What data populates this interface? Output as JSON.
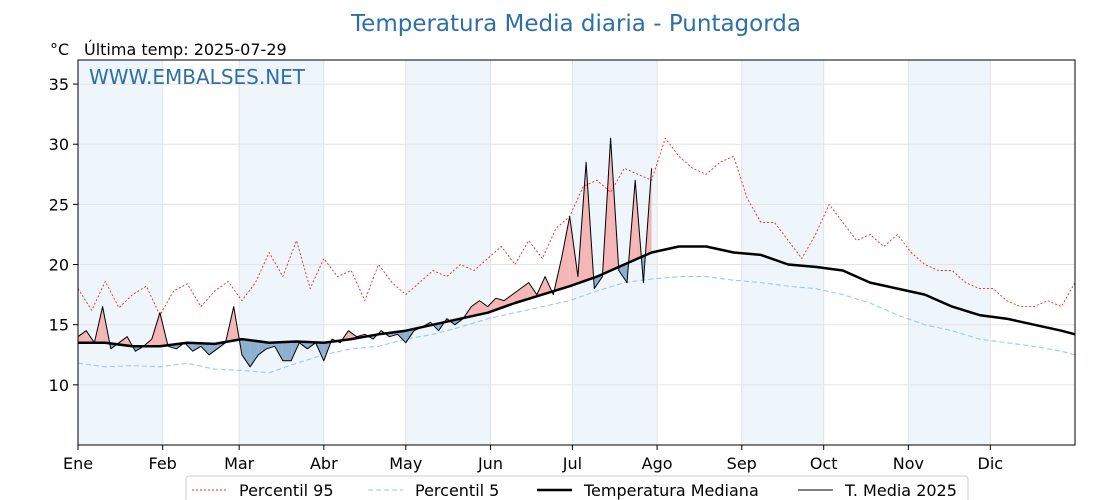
{
  "header": {
    "title": "Temperatura Media diaria - Puntagorda",
    "unit": "°C",
    "last_temp": "Última temp: 2025-07-29",
    "watermark": "WWW.EMBALSES.NET"
  },
  "colors": {
    "p95": "#e8271f",
    "p5": "#9ecae1",
    "median": "#000000",
    "current": "#000000",
    "above_fill": "#f4b6b6",
    "below_fill": "#8eb0cf",
    "month_band": "#eef5fb",
    "title": "#2e6fa8"
  },
  "chart_data": {
    "type": "line",
    "title": "Temperatura Media diaria - Puntagorda",
    "ylabel": "°C",
    "ylim": [
      5,
      37
    ],
    "xlim_days": [
      0,
      365
    ],
    "grid": true,
    "legend_position": "bottom",
    "x_ticks": [
      {
        "label": "Ene",
        "day": 0
      },
      {
        "label": "Feb",
        "day": 31
      },
      {
        "label": "Mar",
        "day": 59
      },
      {
        "label": "Abr",
        "day": 90
      },
      {
        "label": "May",
        "day": 120
      },
      {
        "label": "Jun",
        "day": 151
      },
      {
        "label": "Jul",
        "day": 181
      },
      {
        "label": "Ago",
        "day": 212
      },
      {
        "label": "Sep",
        "day": 243
      },
      {
        "label": "Oct",
        "day": 273
      },
      {
        "label": "Nov",
        "day": 304
      },
      {
        "label": "Dic",
        "day": 334
      }
    ],
    "y_ticks": [
      10,
      15,
      20,
      25,
      30,
      35
    ],
    "series": [
      {
        "name": "Percentil 95",
        "style": "dotted",
        "x": [
          0,
          5,
          10,
          15,
          20,
          25,
          30,
          35,
          40,
          45,
          50,
          55,
          60,
          65,
          70,
          75,
          80,
          85,
          90,
          95,
          100,
          105,
          110,
          115,
          120,
          125,
          130,
          135,
          140,
          145,
          150,
          155,
          160,
          165,
          170,
          175,
          180,
          185,
          190,
          195,
          200,
          205,
          210,
          215,
          220,
          225,
          230,
          235,
          240,
          245,
          250,
          255,
          260,
          265,
          270,
          275,
          280,
          285,
          290,
          295,
          300,
          305,
          310,
          315,
          320,
          325,
          330,
          335,
          340,
          345,
          350,
          355,
          360,
          365
        ],
        "values": [
          18.0,
          16.2,
          18.6,
          16.4,
          17.5,
          18.2,
          15.8,
          17.8,
          18.4,
          16.5,
          17.8,
          18.6,
          17.0,
          18.5,
          21.0,
          19.0,
          22.0,
          18.0,
          20.5,
          19.0,
          19.5,
          17.0,
          20.0,
          18.5,
          17.5,
          18.5,
          19.5,
          19.0,
          20.0,
          19.5,
          20.5,
          21.5,
          20.0,
          22.0,
          20.5,
          23.0,
          24.0,
          26.5,
          27.0,
          26.0,
          28.0,
          27.5,
          27.0,
          30.5,
          29.0,
          28.0,
          27.5,
          28.5,
          29.0,
          25.5,
          23.5,
          23.5,
          22.0,
          20.5,
          22.5,
          25.0,
          23.5,
          22.0,
          22.5,
          21.5,
          22.5,
          21.0,
          20.0,
          19.5,
          19.5,
          18.5,
          18.0,
          18.0,
          17.0,
          16.5,
          16.5,
          17.0,
          16.5,
          18.5
        ]
      },
      {
        "name": "Percentil 5",
        "style": "dashed",
        "x": [
          0,
          10,
          20,
          30,
          40,
          50,
          60,
          70,
          80,
          90,
          100,
          110,
          120,
          130,
          140,
          150,
          160,
          170,
          180,
          190,
          200,
          210,
          220,
          230,
          240,
          250,
          260,
          270,
          280,
          290,
          300,
          310,
          320,
          330,
          340,
          350,
          360,
          365
        ],
        "values": [
          11.8,
          11.5,
          11.6,
          11.5,
          11.8,
          11.3,
          11.2,
          11.0,
          11.8,
          12.5,
          13.0,
          13.2,
          13.8,
          14.2,
          14.8,
          15.5,
          16.0,
          16.5,
          17.0,
          17.8,
          18.5,
          18.8,
          19.0,
          19.0,
          18.7,
          18.5,
          18.2,
          18.0,
          17.5,
          16.8,
          15.8,
          15.0,
          14.5,
          13.8,
          13.5,
          13.2,
          12.8,
          12.5
        ]
      },
      {
        "name": "Temperatura Mediana",
        "style": "solid-thick",
        "x": [
          0,
          10,
          20,
          30,
          40,
          50,
          60,
          70,
          80,
          90,
          100,
          110,
          120,
          130,
          140,
          150,
          160,
          170,
          180,
          190,
          200,
          210,
          220,
          230,
          240,
          250,
          260,
          270,
          280,
          290,
          300,
          310,
          320,
          330,
          340,
          350,
          360,
          365
        ],
        "values": [
          13.5,
          13.5,
          13.2,
          13.2,
          13.5,
          13.4,
          13.8,
          13.5,
          13.6,
          13.5,
          13.8,
          14.2,
          14.5,
          15.0,
          15.5,
          16.0,
          16.8,
          17.5,
          18.2,
          19.0,
          20.0,
          21.0,
          21.5,
          21.5,
          21.0,
          20.8,
          20.0,
          19.8,
          19.5,
          18.5,
          18.0,
          17.5,
          16.5,
          15.8,
          15.5,
          15.0,
          14.5,
          14.2
        ]
      },
      {
        "name": "T. Media 2025",
        "style": "solid-thin",
        "x": [
          0,
          3,
          6,
          9,
          12,
          15,
          18,
          21,
          24,
          27,
          30,
          33,
          36,
          39,
          42,
          45,
          48,
          51,
          54,
          57,
          60,
          63,
          66,
          69,
          72,
          75,
          78,
          81,
          84,
          87,
          90,
          93,
          96,
          99,
          102,
          105,
          108,
          111,
          114,
          117,
          120,
          123,
          126,
          129,
          132,
          135,
          138,
          141,
          144,
          147,
          150,
          153,
          156,
          159,
          162,
          165,
          168,
          171,
          174,
          177,
          180,
          183,
          186,
          189,
          192,
          195,
          198,
          201,
          204,
          207,
          210
        ],
        "values": [
          14.0,
          14.5,
          13.5,
          16.5,
          13.0,
          13.5,
          14.0,
          12.8,
          13.2,
          13.8,
          16.0,
          13.2,
          13.0,
          13.5,
          12.8,
          13.2,
          12.5,
          13.0,
          13.5,
          16.5,
          12.5,
          11.5,
          12.5,
          13.0,
          13.2,
          12.0,
          12.0,
          13.5,
          13.0,
          13.5,
          12.0,
          13.8,
          13.5,
          14.5,
          14.0,
          14.2,
          13.8,
          14.5,
          14.0,
          14.2,
          13.5,
          14.5,
          14.8,
          15.2,
          14.5,
          15.5,
          15.0,
          15.5,
          16.5,
          17.0,
          16.5,
          17.2,
          17.0,
          17.5,
          18.0,
          18.5,
          17.5,
          19.0,
          17.5,
          20.5,
          24.0,
          19.0,
          28.5,
          18.0,
          19.0,
          30.5,
          19.5,
          18.5,
          27.0,
          18.5,
          28.0
        ]
      }
    ]
  },
  "legend": {
    "items": [
      {
        "label": "Percentil 95",
        "style": "dotted",
        "color": "#e8271f"
      },
      {
        "label": "Percentil 5",
        "style": "dashed",
        "color": "#9ecae1"
      },
      {
        "label": "Temperatura Mediana",
        "style": "solid-thick",
        "color": "#000000"
      },
      {
        "label": "T. Media 2025",
        "style": "solid-thin",
        "color": "#000000"
      }
    ]
  }
}
